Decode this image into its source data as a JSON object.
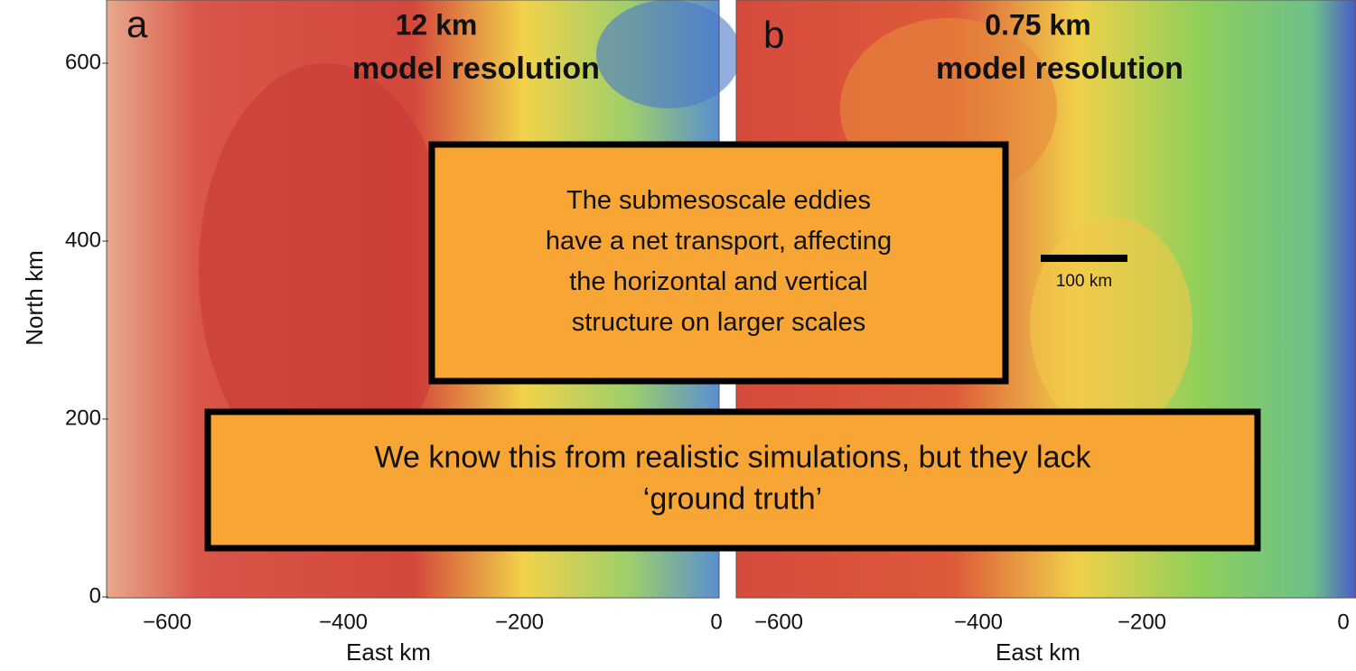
{
  "panels": [
    {
      "letter": "a",
      "title_lines": [
        "12 km",
        "model resolution"
      ],
      "x_ticks": [
        "−600",
        "−400",
        "−200",
        "0"
      ],
      "x_label": "East km"
    },
    {
      "letter": "b",
      "title_lines": [
        "0.75 km",
        "model resolution"
      ],
      "x_ticks": [
        "−600",
        "−400",
        "−200",
        "0"
      ],
      "x_label": "East km"
    }
  ],
  "y_axis": {
    "label": "North km",
    "ticks": [
      "600",
      "400",
      "200",
      "0"
    ]
  },
  "scale_bar": "100 km",
  "callouts": [
    {
      "lines": [
        "The submesoscale eddies",
        "have a net transport, affecting",
        "the horizontal and vertical",
        "structure on larger scales"
      ]
    },
    {
      "lines": [
        "We know this from realistic simulations, but they lack",
        "‘ground truth’"
      ]
    }
  ]
}
